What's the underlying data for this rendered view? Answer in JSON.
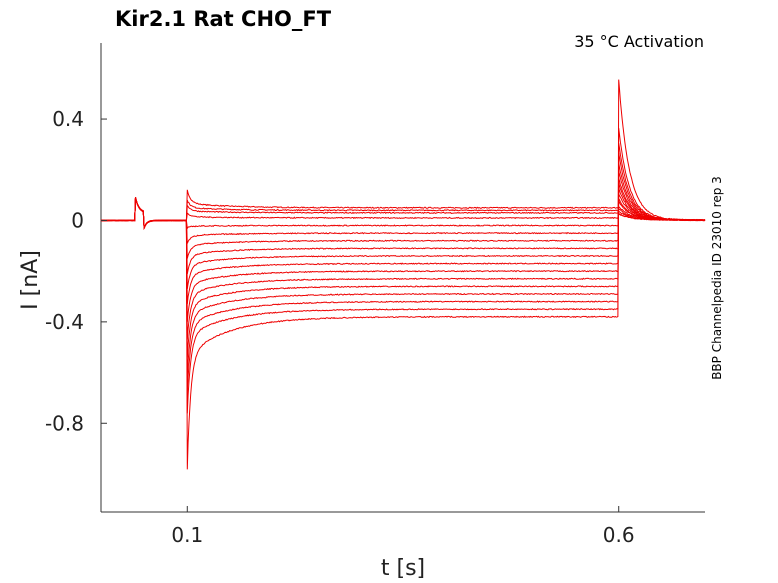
{
  "chart_data": {
    "type": "line",
    "title": "Kir2.1  Rat  CHO_FT",
    "subtitle": "35 °C  Activation",
    "xlabel": "t [s]",
    "ylabel": "I [nA]",
    "side_note": "BBP Channelpedia ID 23010 rep 3",
    "xlim": [
      0.0,
      0.7
    ],
    "ylim": [
      -1.15,
      0.7
    ],
    "xticks": [
      0.1,
      0.6
    ],
    "xtick_labels": [
      "0.1",
      "0.6"
    ],
    "yticks": [
      0.4,
      0.0,
      -0.4,
      -0.8
    ],
    "ytick_labels": [
      "0.4",
      "0",
      "-0.4",
      "-0.8"
    ],
    "grid": false,
    "series_color": "#ee0000",
    "protocol": {
      "prepulse_start": 0.04,
      "prepulse_end": 0.05,
      "step_start": 0.1,
      "step_end": 0.6
    },
    "series": [
      {
        "steady": 0.05,
        "peak": 0.12,
        "tail": 0.02
      },
      {
        "steady": 0.04,
        "peak": 0.08,
        "tail": 0.02
      },
      {
        "steady": 0.03,
        "peak": 0.06,
        "tail": 0.03
      },
      {
        "steady": 0.01,
        "peak": 0.03,
        "tail": 0.04
      },
      {
        "steady": -0.02,
        "peak": -0.03,
        "tail": 0.05
      },
      {
        "steady": -0.05,
        "peak": -0.09,
        "tail": 0.07
      },
      {
        "steady": -0.08,
        "peak": -0.15,
        "tail": 0.08
      },
      {
        "steady": -0.11,
        "peak": -0.21,
        "tail": 0.1
      },
      {
        "steady": -0.14,
        "peak": -0.27,
        "tail": 0.12
      },
      {
        "steady": -0.17,
        "peak": -0.33,
        "tail": 0.14
      },
      {
        "steady": -0.2,
        "peak": -0.4,
        "tail": 0.16
      },
      {
        "steady": -0.23,
        "peak": -0.47,
        "tail": 0.19
      },
      {
        "steady": -0.26,
        "peak": -0.54,
        "tail": 0.22
      },
      {
        "steady": -0.29,
        "peak": -0.61,
        "tail": 0.26
      },
      {
        "steady": -0.32,
        "peak": -0.68,
        "tail": 0.3
      },
      {
        "steady": -0.35,
        "peak": -0.76,
        "tail": 0.36
      },
      {
        "steady": -0.38,
        "peak": -0.98,
        "tail": 0.55
      }
    ]
  }
}
